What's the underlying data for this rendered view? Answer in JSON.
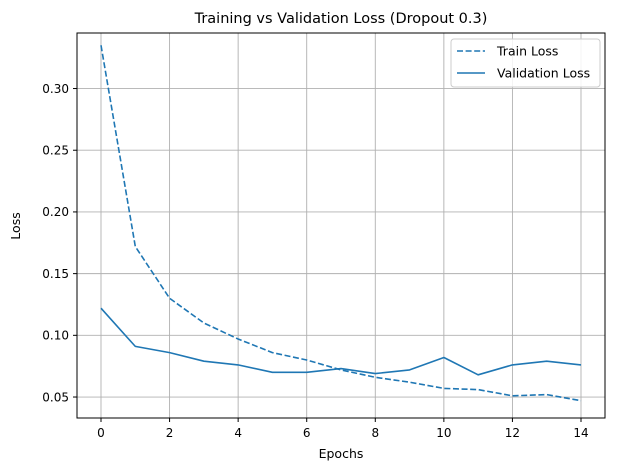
{
  "chart_data": {
    "type": "line",
    "title": "Training vs Validation Loss (Dropout 0.3)",
    "xlabel": "Epochs",
    "ylabel": "Loss",
    "xlim": [
      -0.7,
      14.7
    ],
    "ylim": [
      0.033,
      0.345
    ],
    "x_ticks": [
      0,
      2,
      4,
      6,
      8,
      10,
      12,
      14
    ],
    "y_ticks": [
      0.05,
      0.1,
      0.15,
      0.2,
      0.25,
      0.3
    ],
    "y_tick_labels": [
      "0.05",
      "0.10",
      "0.15",
      "0.20",
      "0.25",
      "0.30"
    ],
    "grid": true,
    "legend_position": "top-right",
    "x": [
      0,
      1,
      2,
      3,
      4,
      5,
      6,
      7,
      8,
      9,
      10,
      11,
      12,
      13,
      14
    ],
    "series": [
      {
        "name": "Train Loss",
        "style": "dashed",
        "color": "#1f77b4",
        "values": [
          0.335,
          0.172,
          0.13,
          0.11,
          0.097,
          0.086,
          0.08,
          0.072,
          0.066,
          0.062,
          0.057,
          0.056,
          0.051,
          0.052,
          0.047
        ]
      },
      {
        "name": "Validation Loss",
        "style": "solid",
        "color": "#1f77b4",
        "values": [
          0.122,
          0.091,
          0.086,
          0.079,
          0.076,
          0.07,
          0.07,
          0.073,
          0.069,
          0.072,
          0.082,
          0.068,
          0.076,
          0.079,
          0.076
        ]
      }
    ]
  }
}
